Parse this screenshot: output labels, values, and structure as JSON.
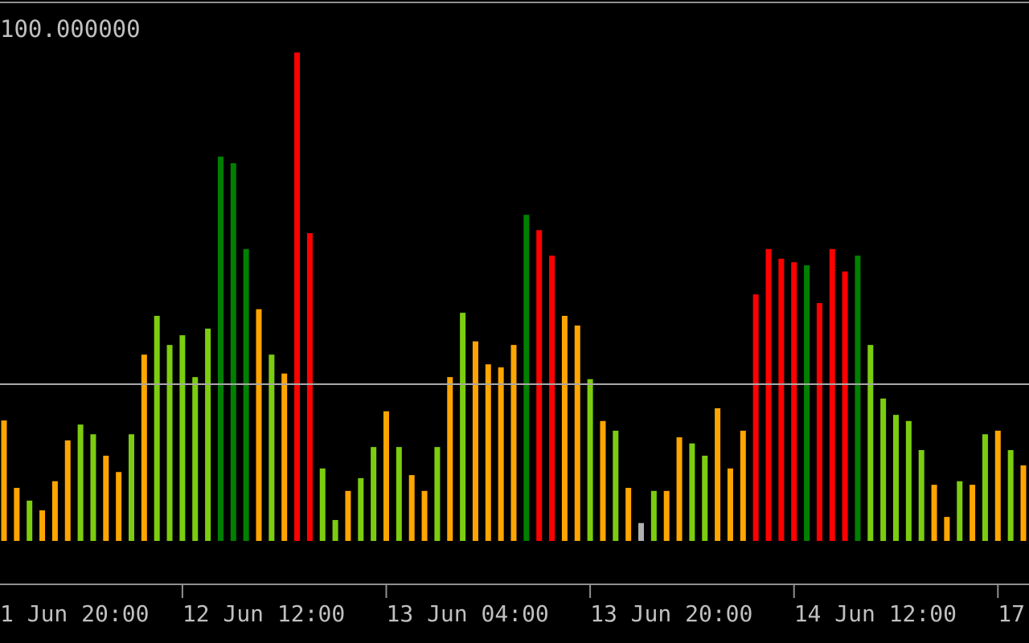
{
  "chart_data": {
    "type": "bar",
    "values": [
      23.6,
      10.4,
      7.9,
      6.0,
      11.7,
      19.7,
      22.8,
      20.9,
      16.7,
      13.5,
      20.9,
      36.5,
      44.1,
      38.4,
      40.3,
      32.1,
      41.6,
      75.3,
      74.0,
      57.2,
      45.4,
      36.5,
      32.8,
      95.7,
      60.3,
      14.2,
      4.1,
      9.8,
      12.3,
      18.4,
      25.4,
      18.4,
      12.9,
      9.8,
      18.4,
      32.1,
      44.7,
      39.1,
      34.6,
      34.0,
      38.4,
      63.9,
      60.9,
      55.9,
      44.1,
      42.2,
      31.7,
      23.5,
      21.6,
      10.4,
      3.5,
      9.8,
      9.8,
      20.3,
      19.1,
      16.7,
      26.0,
      14.2,
      21.6,
      48.3,
      57.2,
      55.3,
      54.6,
      54.0,
      46.6,
      57.2,
      52.8,
      55.9,
      38.4,
      27.9,
      24.7,
      23.5,
      17.8,
      11.0,
      4.7,
      11.7,
      11.0,
      20.9,
      21.6,
      17.8,
      14.8
    ],
    "colors": [
      "#ffa500",
      "#ffa500",
      "#7ccd10",
      "#ffa500",
      "#ffa500",
      "#ffa500",
      "#7ccd10",
      "#7ccd10",
      "#ffa500",
      "#ffa500",
      "#7ccd10",
      "#ffa500",
      "#7ccd10",
      "#7ccd10",
      "#7ccd10",
      "#7ccd10",
      "#7ccd10",
      "#008000",
      "#008000",
      "#008000",
      "#ffa500",
      "#7ccd10",
      "#ffa500",
      "#ff0000",
      "#ff0000",
      "#7ccd10",
      "#7ccd10",
      "#ffa500",
      "#7ccd10",
      "#7ccd10",
      "#ffa500",
      "#7ccd10",
      "#ffa500",
      "#ffa500",
      "#7ccd10",
      "#ffa500",
      "#7ccd10",
      "#ffa500",
      "#ffa500",
      "#ffa500",
      "#ffa500",
      "#008000",
      "#ff0000",
      "#ff0000",
      "#ffa500",
      "#ffa500",
      "#7ccd10",
      "#ffa500",
      "#7ccd10",
      "#ffa500",
      "#b0b0b0",
      "#7ccd10",
      "#ffa500",
      "#ffa500",
      "#7ccd10",
      "#7ccd10",
      "#ffa500",
      "#ffa500",
      "#ffa500",
      "#ff0000",
      "#ff0000",
      "#ff0000",
      "#ff0000",
      "#008000",
      "#ff0000",
      "#ff0000",
      "#ff0000",
      "#008000",
      "#7ccd10",
      "#7ccd10",
      "#7ccd10",
      "#7ccd10",
      "#7ccd10",
      "#ffa500",
      "#ffa500",
      "#7ccd10",
      "#ffa500",
      "#7ccd10",
      "#ffa500",
      "#7ccd10",
      "#ffa500"
    ],
    "ylim": [
      0,
      100
    ],
    "yticks": [
      {
        "value": 100,
        "label": "100.000000"
      }
    ],
    "level": 30.7,
    "xticks": [
      {
        "value": -2,
        "label": "1 Jun 20:00"
      },
      {
        "value": 14,
        "label": "12 Jun 12:00"
      },
      {
        "value": 30,
        "label": "13 Jun 04:00"
      },
      {
        "value": 46,
        "label": "13 Jun 20:00"
      },
      {
        "value": 62,
        "label": "14 Jun 12:00"
      },
      {
        "value": 78,
        "label": "17"
      }
    ]
  }
}
